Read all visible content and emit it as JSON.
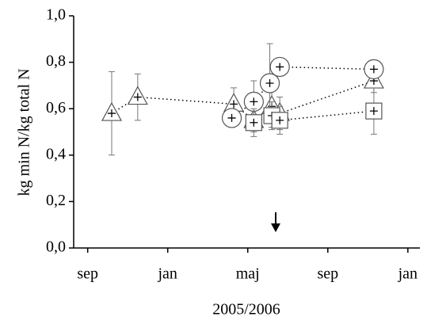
{
  "chart_data": {
    "type": "scatter",
    "x_label": "2005/2006",
    "y_label": "kg min N/kg total N",
    "xlim": [
      -0.7,
      16.6
    ],
    "ylim": [
      0,
      1
    ],
    "xticks": [
      {
        "value": 0,
        "label": "sep"
      },
      {
        "value": 4,
        "label": "jan"
      },
      {
        "value": 8,
        "label": "maj"
      },
      {
        "value": 12,
        "label": "sep"
      },
      {
        "value": 16,
        "label": "jan"
      }
    ],
    "yticks": [
      {
        "value": 0,
        "label": "0,0"
      },
      {
        "value": 0.2,
        "label": "0,2"
      },
      {
        "value": 0.4,
        "label": "0,4"
      },
      {
        "value": 0.6,
        "label": "0,6"
      },
      {
        "value": 0.8,
        "label": "0,8"
      },
      {
        "value": 1,
        "label": "1,0"
      }
    ],
    "series": [
      {
        "marker": "triangle",
        "color": "#555555",
        "x": [
          1.2,
          2.5,
          7.3,
          8.3,
          9.2,
          9.6,
          14.3
        ],
        "values": [
          0.58,
          0.65,
          0.62,
          0.55,
          0.61,
          0.58,
          0.72
        ],
        "errors": [
          0.18,
          0.1,
          0.07,
          0.05,
          0.09,
          0.07,
          0.05
        ]
      },
      {
        "marker": "circle",
        "color": "#555555",
        "x": [
          7.2,
          8.3,
          9.1,
          9.6,
          14.3
        ],
        "values": [
          0.56,
          0.63,
          0.71,
          0.78,
          0.77
        ],
        "errors": [
          0.04,
          0.09,
          0.17,
          0.03,
          0.03
        ]
      },
      {
        "marker": "square",
        "color": "#555555",
        "x": [
          8.3,
          9.2,
          9.6,
          14.3
        ],
        "values": [
          0.54,
          0.57,
          0.55,
          0.59
        ],
        "errors": [
          0.06,
          0.06,
          0.06,
          0.1
        ]
      }
    ]
  }
}
